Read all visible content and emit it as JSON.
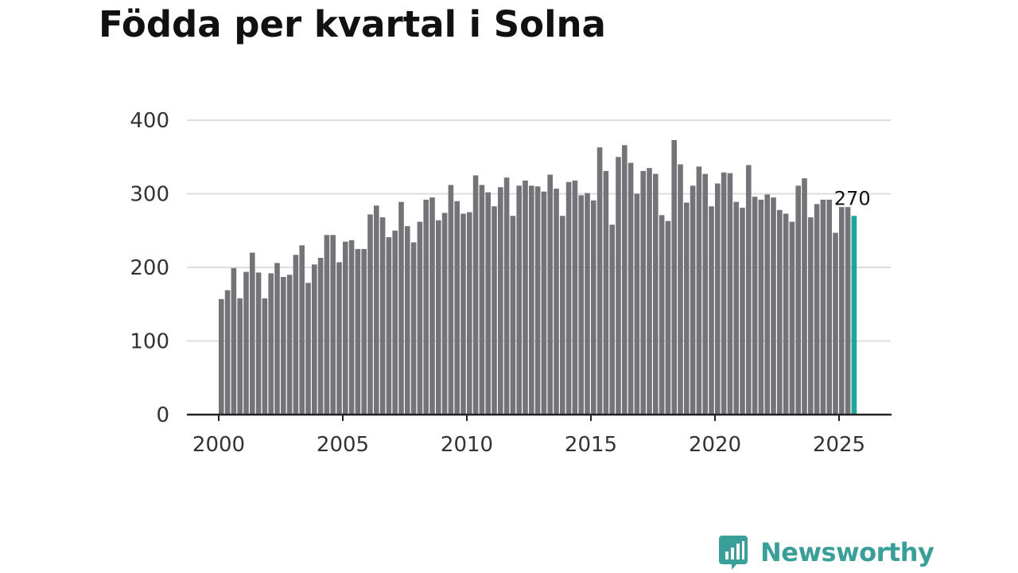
{
  "title": "Födda per kvartal i Solna",
  "brand": {
    "name": "Newsworthy",
    "icon": "newsworthy-logo-icon",
    "color": "#3a9f98"
  },
  "colors": {
    "bar": "#747378",
    "highlight": "#1fa599",
    "grid": "#dddddd",
    "axis": "#222222"
  },
  "chart_data": {
    "type": "bar",
    "title": "Födda per kvartal i Solna",
    "xlabel": "",
    "ylabel": "",
    "ylim": [
      0,
      400
    ],
    "yticks": [
      0,
      100,
      200,
      300,
      400
    ],
    "xticks": [
      2000,
      2005,
      2010,
      2015,
      2020,
      2025
    ],
    "grid": true,
    "first_quarter": "2000-Q1",
    "values": [
      157,
      169,
      199,
      158,
      194,
      220,
      193,
      158,
      192,
      206,
      187,
      190,
      217,
      230,
      179,
      204,
      213,
      244,
      244,
      207,
      235,
      237,
      225,
      225,
      272,
      284,
      268,
      241,
      250,
      289,
      256,
      234,
      262,
      292,
      295,
      264,
      274,
      312,
      290,
      273,
      275,
      325,
      312,
      302,
      283,
      309,
      322,
      270,
      311,
      318,
      311,
      310,
      303,
      326,
      307,
      270,
      316,
      318,
      298,
      301,
      291,
      363,
      331,
      258,
      350,
      366,
      342,
      300,
      331,
      335,
      327,
      271,
      263,
      373,
      340,
      288,
      311,
      337,
      327,
      283,
      314,
      329,
      328,
      289,
      281,
      339,
      296,
      292,
      299,
      295,
      278,
      273,
      262,
      311,
      321,
      268,
      286,
      292,
      292,
      247,
      282,
      282,
      270
    ],
    "highlight": {
      "quarter": "2025-Q3",
      "value": 270,
      "label": "270"
    }
  }
}
